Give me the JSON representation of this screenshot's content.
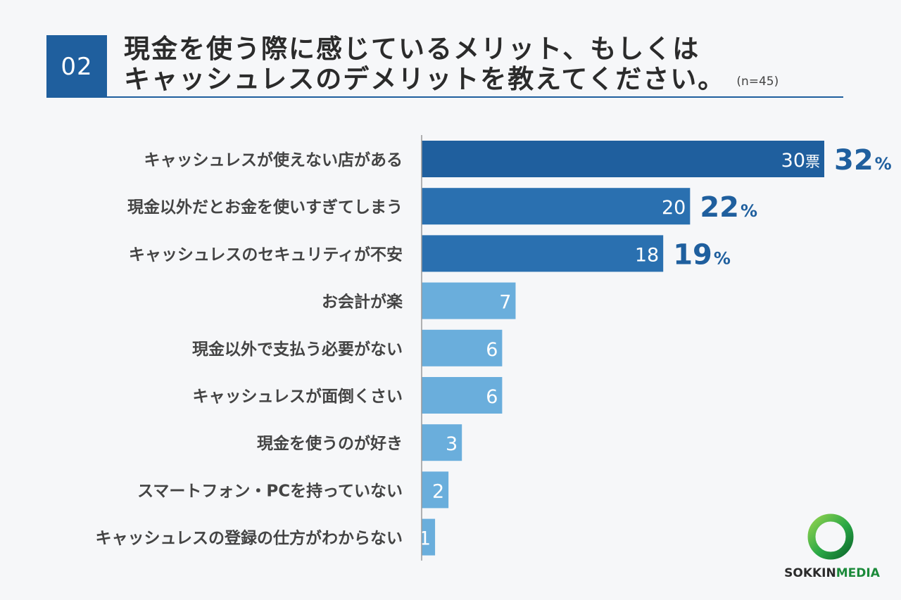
{
  "header": {
    "question_number": "02",
    "title_line1": "現金を使う際に感じているメリット、もしくは",
    "title_line2": "キャッシュレスのデメリットを教えてください。",
    "sample_size": "(n=45)"
  },
  "chart_data": {
    "type": "bar",
    "orientation": "horizontal",
    "categories": [
      "キャッシュレスが使えない店がある",
      "現金以外だとお金を使いすぎてしまう",
      "キャッシュレスのセキュリティが不安",
      "お会計が楽",
      "現金以外で支払う必要がない",
      "キャッシュレスが面倒くさい",
      "現金を使うのが好き",
      "スマートフォン・PCを持っていない",
      "キャッシュレスの登録の仕方がわからない"
    ],
    "values": [
      30,
      20,
      18,
      7,
      6,
      6,
      3,
      2,
      1
    ],
    "value_unit_first": "票",
    "percent_labels": [
      {
        "index": 0,
        "value": "32",
        "unit": "%"
      },
      {
        "index": 1,
        "value": "22",
        "unit": "%"
      },
      {
        "index": 2,
        "value": "19",
        "unit": "%"
      }
    ],
    "colors": {
      "highlight_top": "#1f5f9e",
      "highlight": "#2a70b0",
      "normal": "#6aaedc",
      "percent_text": "#1f5f9e",
      "axis": "#999999"
    },
    "xlim": [
      0,
      30
    ],
    "highlight_count": 3
  },
  "logo": {
    "part1": "SOKKIN",
    "part2": "MEDIA"
  }
}
